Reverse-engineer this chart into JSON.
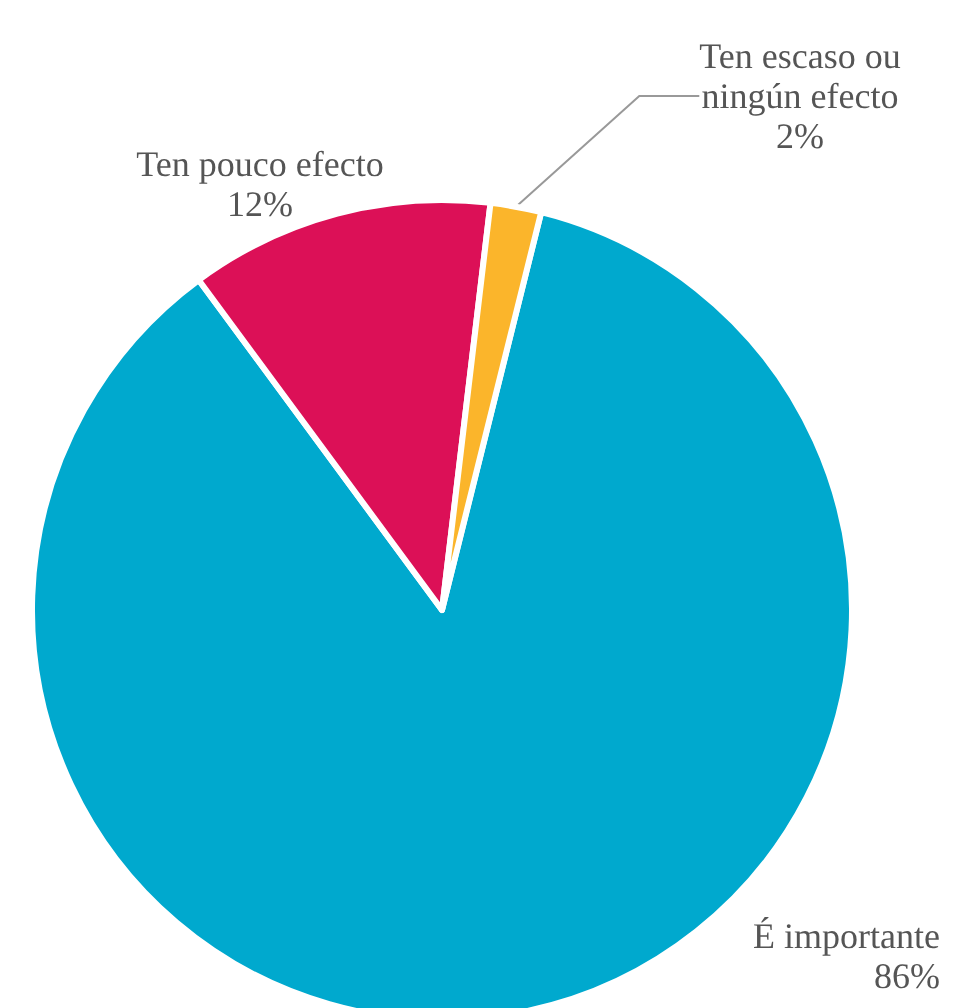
{
  "chart_data": {
    "type": "pie",
    "categories": [
      "É importante",
      "Ten pouco efecto",
      "Ten escaso ou\nningún efecto"
    ],
    "values": [
      86,
      12,
      2
    ],
    "value_labels": [
      "86%",
      "12%",
      "2%"
    ],
    "colors": [
      "#00a9ce",
      "#dc1057",
      "#fbb52b"
    ]
  }
}
